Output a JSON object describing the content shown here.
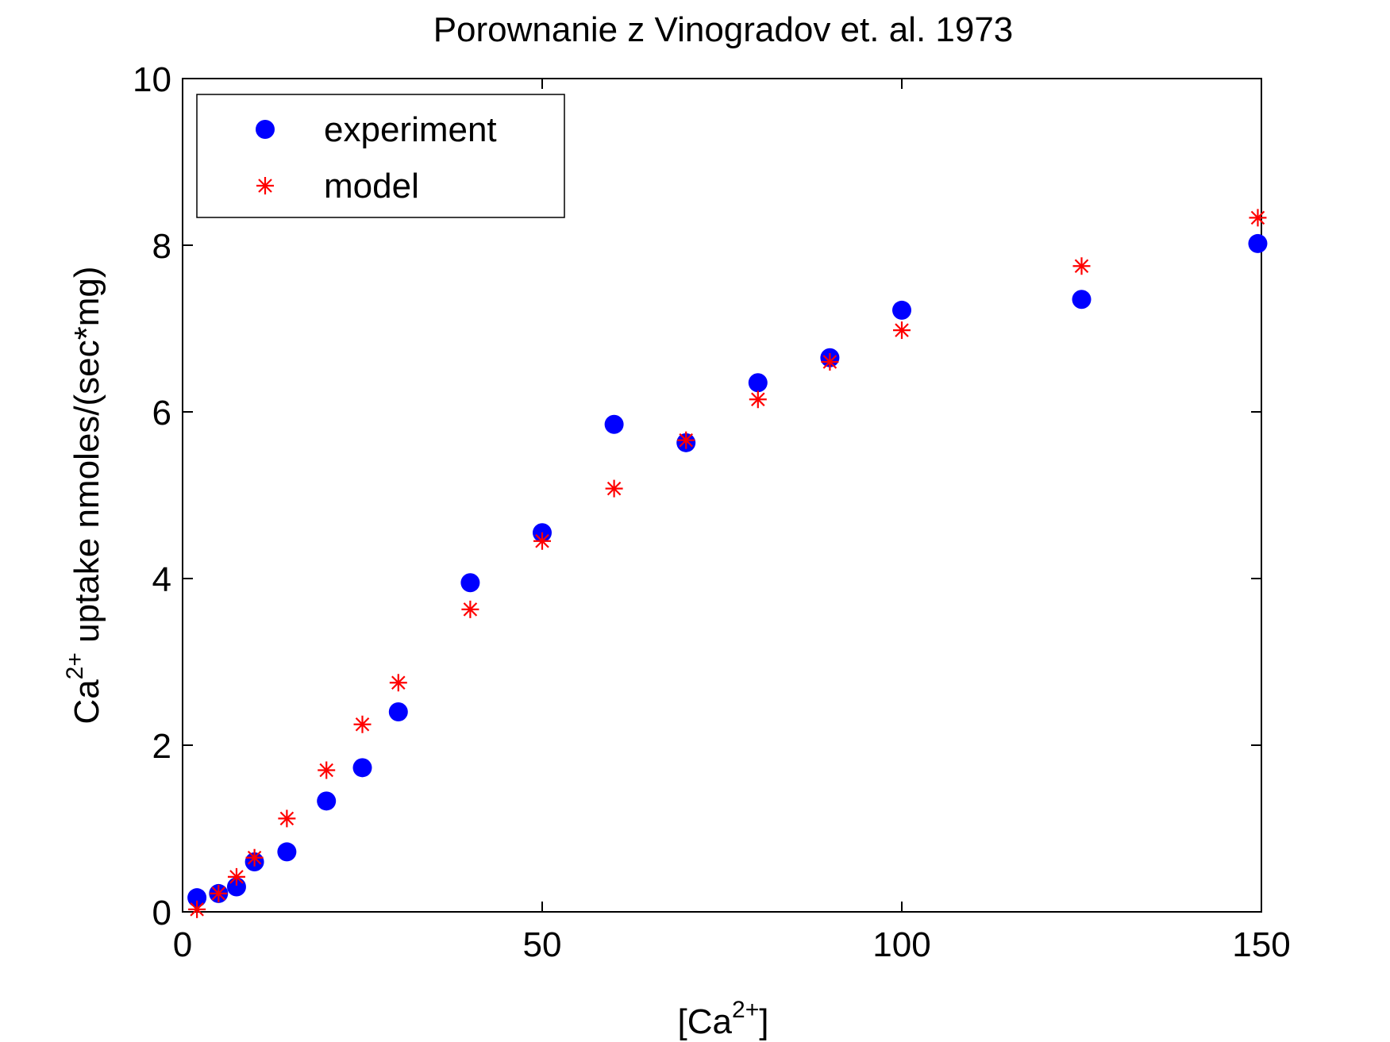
{
  "chart_data": {
    "type": "scatter",
    "title": "Porownanie z Vinogradov et. al. 1973",
    "xlabel": {
      "prefix": "[Ca",
      "sup": "2+",
      "suffix": "]"
    },
    "ylabel": {
      "prefix": "Ca",
      "sup": "2+",
      "suffix": " uptake nmoles/(sec*mg)"
    },
    "xlim": [
      0,
      150
    ],
    "ylim": [
      0,
      10
    ],
    "xticks": [
      0,
      50,
      100,
      150
    ],
    "yticks": [
      0,
      2,
      4,
      6,
      8,
      10
    ],
    "xtick_labels": [
      "0",
      "50",
      "100",
      "150"
    ],
    "ytick_labels": [
      "0",
      "2",
      "4",
      "6",
      "8",
      "10"
    ],
    "grid": false,
    "box": true,
    "legend_position": "top-left",
    "series": [
      {
        "name": "experiment",
        "marker": "circle",
        "color": "#0000ff",
        "x": [
          2,
          5,
          7.5,
          10,
          14.5,
          20,
          25,
          30,
          40,
          50,
          60,
          70,
          80,
          90,
          100,
          125,
          149.5
        ],
        "y": [
          0.17,
          0.22,
          0.3,
          0.6,
          0.72,
          1.33,
          1.73,
          2.4,
          3.95,
          4.55,
          5.85,
          5.63,
          6.35,
          6.65,
          7.22,
          7.35,
          8.02
        ]
      },
      {
        "name": "model",
        "marker": "asterisk",
        "color": "#ff0000",
        "x": [
          2,
          5,
          7.5,
          10,
          14.5,
          20,
          25,
          30,
          40,
          50,
          60,
          70,
          80,
          90,
          100,
          125,
          149.5
        ],
        "y": [
          0.03,
          0.22,
          0.42,
          0.65,
          1.12,
          1.7,
          2.25,
          2.75,
          3.63,
          4.45,
          5.08,
          5.66,
          6.15,
          6.6,
          6.98,
          7.75,
          8.33
        ]
      }
    ]
  }
}
